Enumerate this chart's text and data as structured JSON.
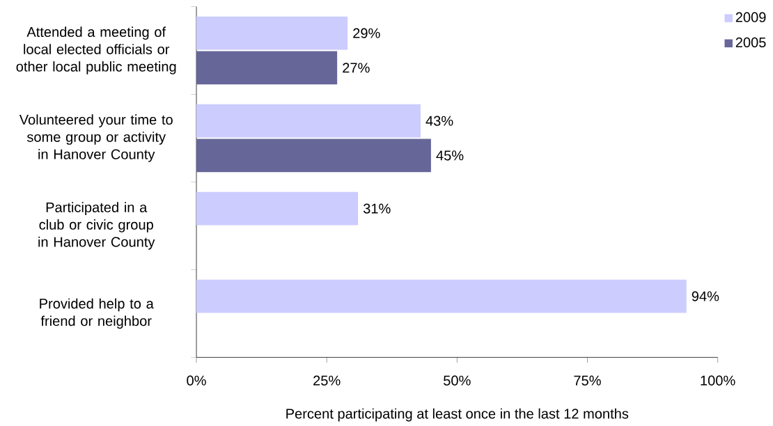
{
  "chart_data": {
    "type": "bar",
    "orientation": "horizontal",
    "xlabel": "Percent participating at least once in the last 12 months",
    "categories": [
      "Attended a meeting of local elected officials or other local public meeting",
      "Volunteered your time to some group or activity in Hanover County",
      "Participated in a club or civic group in Hanover County",
      "Provided help to a friend or neighbor"
    ],
    "series": [
      {
        "name": "2009",
        "color": "#ccccff",
        "values": [
          29,
          43,
          31,
          94
        ],
        "value_labels": [
          "29%",
          "43%",
          "31%",
          "94%"
        ]
      },
      {
        "name": "2005",
        "color": "#666699",
        "values": [
          27,
          45,
          null,
          null
        ],
        "value_labels": [
          "27%",
          "45%",
          null,
          null
        ]
      }
    ],
    "xlim": [
      0,
      100
    ],
    "xticks": [
      {
        "value": 0,
        "label": "0%"
      },
      {
        "value": 25,
        "label": "25%"
      },
      {
        "value": 50,
        "label": "50%"
      },
      {
        "value": 75,
        "label": "75%"
      },
      {
        "value": 100,
        "label": "100%"
      }
    ],
    "grid": false,
    "legend": "top right"
  }
}
